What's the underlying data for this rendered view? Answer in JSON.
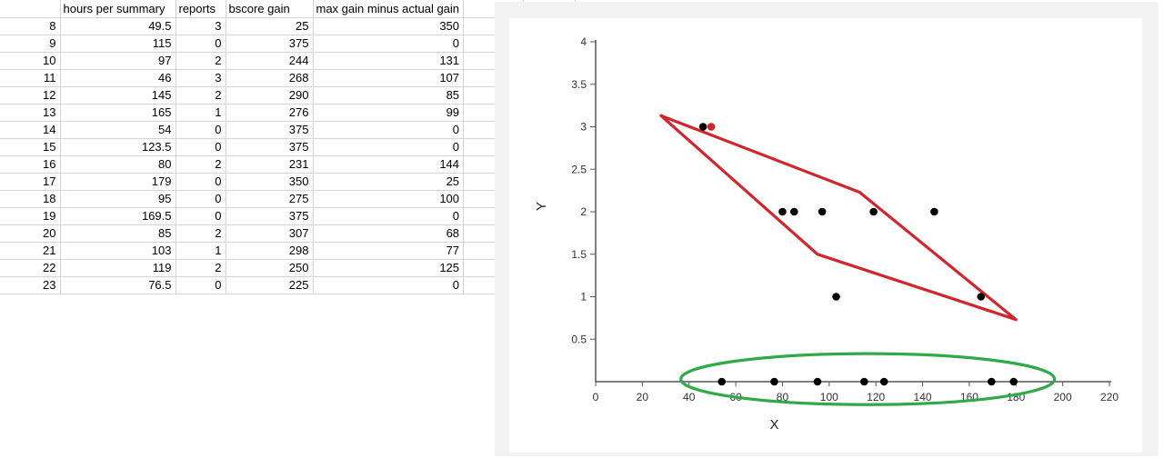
{
  "spreadsheet": {
    "headers": [
      "",
      "hours per summary",
      "reports",
      "bscore gain",
      "max gain minus actual gain",
      "",
      ""
    ],
    "rows": [
      [
        "8",
        "49.5",
        "3",
        "25",
        "350"
      ],
      [
        "9",
        "115",
        "0",
        "375",
        "0"
      ],
      [
        "10",
        "97",
        "2",
        "244",
        "131"
      ],
      [
        "11",
        "46",
        "3",
        "268",
        "107"
      ],
      [
        "12",
        "145",
        "2",
        "290",
        "85"
      ],
      [
        "13",
        "165",
        "1",
        "276",
        "99"
      ],
      [
        "14",
        "54",
        "0",
        "375",
        "0"
      ],
      [
        "15",
        "123.5",
        "0",
        "375",
        "0"
      ],
      [
        "16",
        "80",
        "2",
        "231",
        "144"
      ],
      [
        "17",
        "179",
        "0",
        "350",
        "25"
      ],
      [
        "18",
        "95",
        "0",
        "275",
        "100"
      ],
      [
        "19",
        "169.5",
        "0",
        "375",
        "0"
      ],
      [
        "20",
        "85",
        "2",
        "307",
        "68"
      ],
      [
        "21",
        "103",
        "1",
        "298",
        "77"
      ],
      [
        "22",
        "119",
        "2",
        "250",
        "125"
      ],
      [
        "23",
        "76.5",
        "0",
        "225",
        "0"
      ]
    ]
  },
  "chart_data": {
    "type": "scatter",
    "xlabel": "X",
    "ylabel": "Y",
    "xlim": [
      0,
      220
    ],
    "ylim": [
      0,
      4
    ],
    "x_ticks": [
      "0",
      "20",
      "40",
      "60",
      "80",
      "100",
      "120",
      "140",
      "160",
      "180",
      "200",
      "220"
    ],
    "y_ticks": [
      "0.5",
      "1",
      "1.5",
      "2",
      "2.5",
      "3",
      "3.5",
      "4"
    ],
    "grid": false,
    "point_color": "#000000",
    "points": [
      {
        "x": 46,
        "y": 3
      },
      {
        "x": 49.5,
        "y": 3,
        "color": "#d0262d"
      },
      {
        "x": 80,
        "y": 2
      },
      {
        "x": 85,
        "y": 2
      },
      {
        "x": 97,
        "y": 2
      },
      {
        "x": 119,
        "y": 2
      },
      {
        "x": 145,
        "y": 2
      },
      {
        "x": 103,
        "y": 1
      },
      {
        "x": 165,
        "y": 1
      },
      {
        "x": 54,
        "y": 0
      },
      {
        "x": 76.5,
        "y": 0
      },
      {
        "x": 95,
        "y": 0
      },
      {
        "x": 115,
        "y": 0
      },
      {
        "x": 123.5,
        "y": 0
      },
      {
        "x": 169.5,
        "y": 0
      },
      {
        "x": 179,
        "y": 0
      }
    ],
    "annotations": [
      {
        "kind": "polygon",
        "color": "#d0262d",
        "points": [
          [
            28,
            3.13
          ],
          [
            113,
            2.23
          ],
          [
            180,
            0.73
          ],
          [
            95,
            1.5
          ]
        ]
      },
      {
        "kind": "ellipse",
        "color": "#2eaa46",
        "center": [
          116.5,
          0.03
        ],
        "rx": 80,
        "ry": 0.3
      }
    ]
  }
}
